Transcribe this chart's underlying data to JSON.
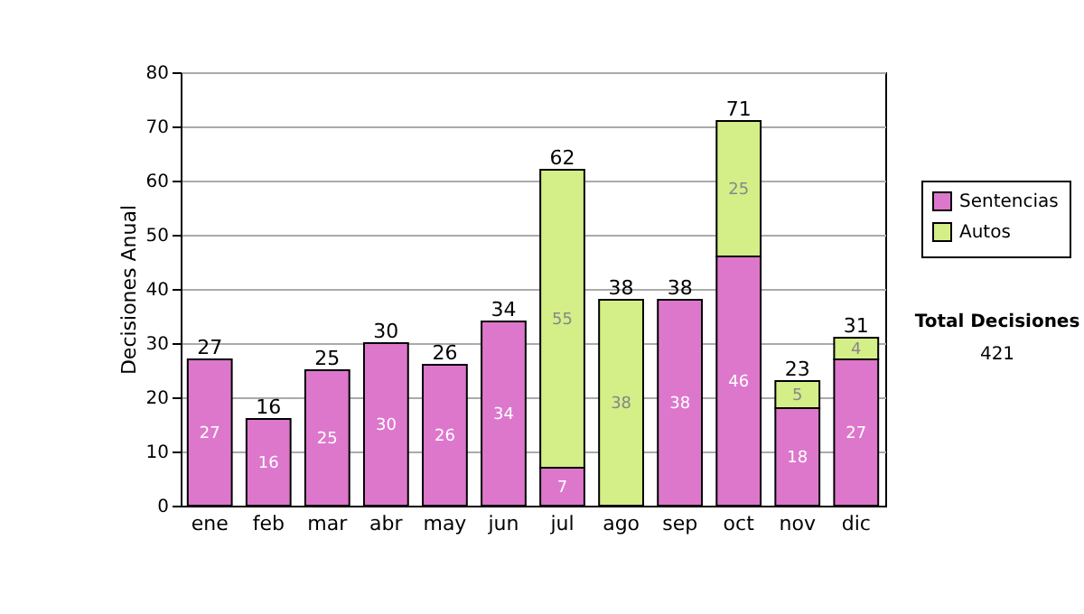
{
  "chart_data": {
    "type": "bar",
    "stacked": true,
    "ylabel": "Decisiones Anual",
    "categories": [
      "ene",
      "feb",
      "mar",
      "abr",
      "may",
      "jun",
      "jul",
      "ago",
      "sep",
      "oct",
      "nov",
      "dic"
    ],
    "series": [
      {
        "name": "Sentencias",
        "color": "#dd77cc",
        "values": [
          27,
          16,
          25,
          30,
          26,
          34,
          7,
          null,
          38,
          46,
          18,
          27
        ],
        "value_labels": [
          "27",
          "16",
          "25",
          "30",
          "26",
          "34",
          "7",
          null,
          "38",
          "46",
          "18",
          "27"
        ]
      },
      {
        "name": "Autos",
        "color": "#d4ee88",
        "values": [
          null,
          null,
          null,
          null,
          null,
          null,
          55,
          38,
          null,
          25,
          5,
          4
        ],
        "value_labels": [
          null,
          null,
          null,
          null,
          null,
          null,
          "55",
          "38",
          null,
          "25",
          "5",
          "4"
        ]
      }
    ],
    "totals": [
      "27",
      "16",
      "25",
      "30",
      "26",
      "34",
      "62",
      "38",
      "38",
      "71",
      "23",
      "31"
    ],
    "ylim": [
      0,
      80
    ],
    "yticks": [
      0,
      10,
      20,
      30,
      40,
      50,
      60,
      70,
      80
    ],
    "grid": "y",
    "legend": "right",
    "annotations": [
      "Total Decisiones",
      "421"
    ]
  }
}
